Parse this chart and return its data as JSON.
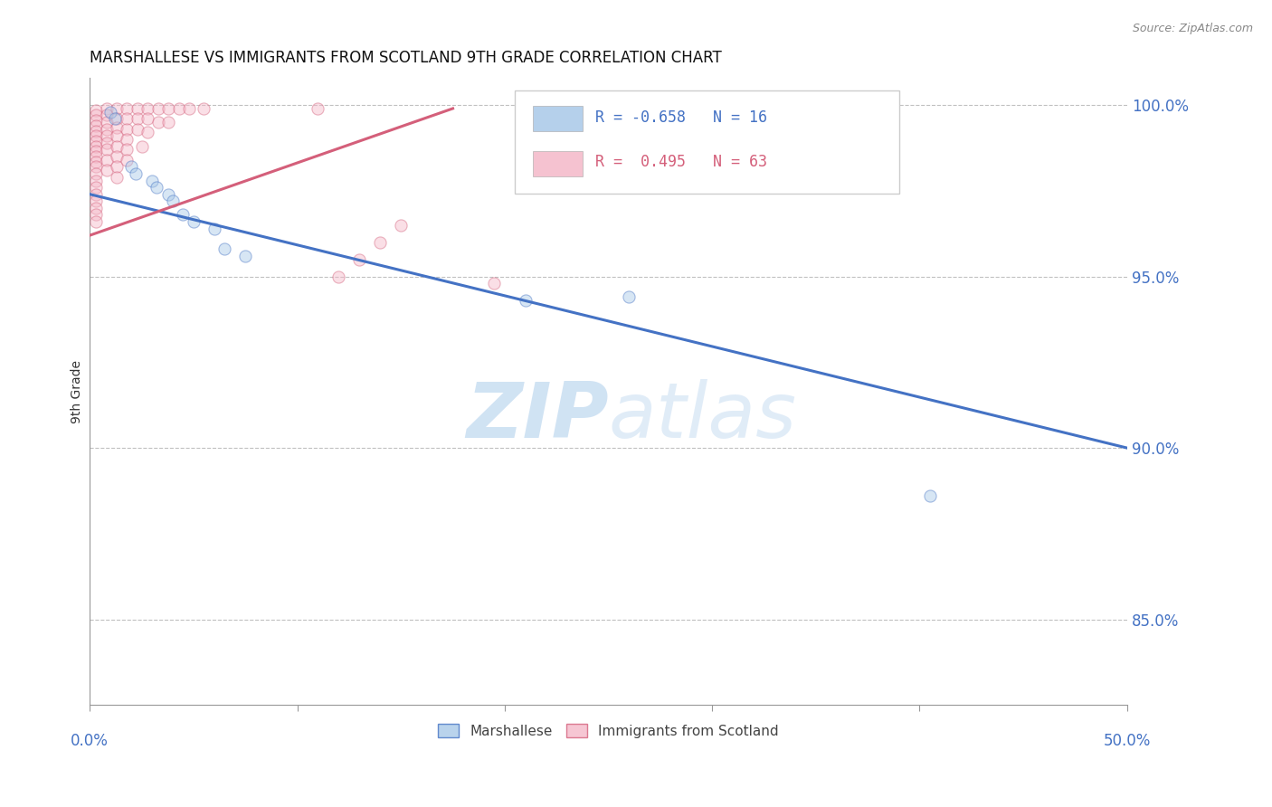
{
  "title": "MARSHALLESE VS IMMIGRANTS FROM SCOTLAND 9TH GRADE CORRELATION CHART",
  "source": "Source: ZipAtlas.com",
  "ylabel": "9th Grade",
  "xlim": [
    0.0,
    0.5
  ],
  "ylim": [
    0.825,
    1.008
  ],
  "yticks": [
    0.85,
    0.9,
    0.95,
    1.0
  ],
  "ytick_labels": [
    "85.0%",
    "90.0%",
    "95.0%",
    "100.0%"
  ],
  "xtick_positions": [
    0.0,
    0.1,
    0.2,
    0.3,
    0.4,
    0.5
  ],
  "legend_entries": [
    {
      "color": "#a8c8e8",
      "R": "-0.658",
      "N": "16",
      "label": "Marshallese"
    },
    {
      "color": "#f4b8c8",
      "R": " 0.495",
      "N": "63",
      "label": "Immigrants from Scotland"
    }
  ],
  "blue_scatter": [
    [
      0.01,
      0.998
    ],
    [
      0.012,
      0.996
    ],
    [
      0.02,
      0.982
    ],
    [
      0.022,
      0.98
    ],
    [
      0.03,
      0.978
    ],
    [
      0.032,
      0.976
    ],
    [
      0.038,
      0.974
    ],
    [
      0.04,
      0.972
    ],
    [
      0.045,
      0.968
    ],
    [
      0.05,
      0.966
    ],
    [
      0.06,
      0.964
    ],
    [
      0.065,
      0.958
    ],
    [
      0.075,
      0.956
    ],
    [
      0.21,
      0.943
    ],
    [
      0.26,
      0.944
    ],
    [
      0.405,
      0.886
    ]
  ],
  "pink_scatter": [
    [
      0.003,
      0.9985
    ],
    [
      0.003,
      0.997
    ],
    [
      0.003,
      0.9955
    ],
    [
      0.003,
      0.994
    ],
    [
      0.003,
      0.9925
    ],
    [
      0.003,
      0.991
    ],
    [
      0.003,
      0.9895
    ],
    [
      0.003,
      0.988
    ],
    [
      0.003,
      0.9865
    ],
    [
      0.003,
      0.985
    ],
    [
      0.003,
      0.9835
    ],
    [
      0.003,
      0.982
    ],
    [
      0.003,
      0.98
    ],
    [
      0.003,
      0.978
    ],
    [
      0.003,
      0.976
    ],
    [
      0.003,
      0.974
    ],
    [
      0.003,
      0.972
    ],
    [
      0.003,
      0.97
    ],
    [
      0.003,
      0.968
    ],
    [
      0.003,
      0.966
    ],
    [
      0.008,
      0.999
    ],
    [
      0.008,
      0.997
    ],
    [
      0.008,
      0.995
    ],
    [
      0.008,
      0.993
    ],
    [
      0.008,
      0.991
    ],
    [
      0.008,
      0.989
    ],
    [
      0.008,
      0.987
    ],
    [
      0.008,
      0.984
    ],
    [
      0.008,
      0.981
    ],
    [
      0.013,
      0.999
    ],
    [
      0.013,
      0.996
    ],
    [
      0.013,
      0.9935
    ],
    [
      0.013,
      0.991
    ],
    [
      0.013,
      0.988
    ],
    [
      0.013,
      0.985
    ],
    [
      0.013,
      0.982
    ],
    [
      0.013,
      0.979
    ],
    [
      0.018,
      0.999
    ],
    [
      0.018,
      0.996
    ],
    [
      0.018,
      0.993
    ],
    [
      0.018,
      0.99
    ],
    [
      0.018,
      0.987
    ],
    [
      0.018,
      0.984
    ],
    [
      0.023,
      0.999
    ],
    [
      0.023,
      0.996
    ],
    [
      0.023,
      0.993
    ],
    [
      0.025,
      0.988
    ],
    [
      0.028,
      0.999
    ],
    [
      0.028,
      0.996
    ],
    [
      0.028,
      0.992
    ],
    [
      0.033,
      0.999
    ],
    [
      0.033,
      0.995
    ],
    [
      0.038,
      0.999
    ],
    [
      0.038,
      0.995
    ],
    [
      0.043,
      0.999
    ],
    [
      0.048,
      0.999
    ],
    [
      0.055,
      0.999
    ],
    [
      0.11,
      0.999
    ],
    [
      0.12,
      0.95
    ],
    [
      0.13,
      0.955
    ],
    [
      0.14,
      0.96
    ],
    [
      0.15,
      0.965
    ],
    [
      0.195,
      0.948
    ]
  ],
  "blue_line": [
    [
      0.0,
      0.974
    ],
    [
      0.5,
      0.9
    ]
  ],
  "pink_line": [
    [
      0.0,
      0.962
    ],
    [
      0.175,
      0.999
    ]
  ],
  "watermark_zip": "ZIP",
  "watermark_atlas": "atlas",
  "bg_color": "#ffffff",
  "scatter_alpha": 0.45,
  "scatter_size": 90,
  "blue_color": "#a8c8e8",
  "pink_color": "#f4b8c8",
  "blue_line_color": "#4472c4",
  "pink_line_color": "#d45f7a",
  "grid_color": "#c0c0c0",
  "tick_color": "#4472c4",
  "title_fontsize": 12,
  "axis_label_fontsize": 10,
  "legend_r_blue": "#4472c4",
  "legend_r_pink": "#d45f7a"
}
